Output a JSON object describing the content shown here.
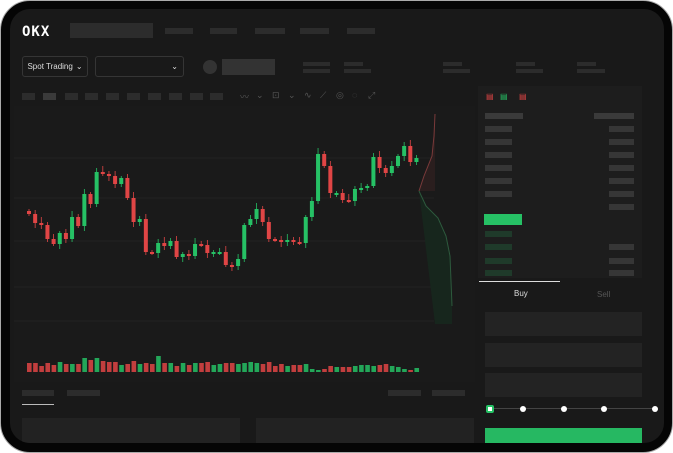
{
  "brand": {
    "logo": "OKX"
  },
  "toolbar": {
    "mode_label": "Spot Trading",
    "pair_select": ""
  },
  "order_form": {
    "tabs": [
      {
        "label": "Buy",
        "active": true
      },
      {
        "label": "Sell",
        "active": false
      }
    ],
    "slider_steps": 5,
    "slider_value_pct": 0
  },
  "colors": {
    "up": "#26c165",
    "down": "#e04545",
    "background": "#191919"
  },
  "icons": [
    "chevron-down-icon",
    "orderbook-both-icon",
    "orderbook-bids-icon",
    "orderbook-asks-icon"
  ],
  "candles": {
    "closes": [
      95,
      86,
      84,
      70,
      65,
      76,
      70,
      92,
      83,
      115,
      105,
      137,
      135,
      133,
      125,
      131,
      111,
      87,
      90,
      57,
      56,
      66,
      63,
      68,
      52,
      55,
      53,
      65,
      64,
      56,
      57,
      57,
      44,
      43,
      50,
      84,
      90,
      100,
      87,
      70,
      69,
      67,
      69,
      67,
      66,
      92,
      108,
      155,
      143,
      116,
      116,
      109,
      108,
      120,
      121,
      123,
      152,
      141,
      136,
      143,
      153,
      163,
      147,
      151
    ],
    "volumes": [
      9,
      9,
      6,
      9,
      7,
      10,
      8,
      8,
      8,
      14,
      12,
      14,
      11,
      10,
      10,
      7,
      8,
      11,
      8,
      9,
      8,
      16,
      9,
      9,
      6,
      9,
      7,
      9,
      9,
      10,
      7,
      8,
      9,
      9,
      8,
      9,
      10,
      9,
      8,
      10,
      6,
      8,
      6,
      7,
      7,
      8,
      3,
      2,
      3,
      6,
      5,
      5,
      5,
      6,
      7,
      7,
      6,
      7,
      8,
      6,
      5,
      3,
      2,
      4
    ]
  }
}
